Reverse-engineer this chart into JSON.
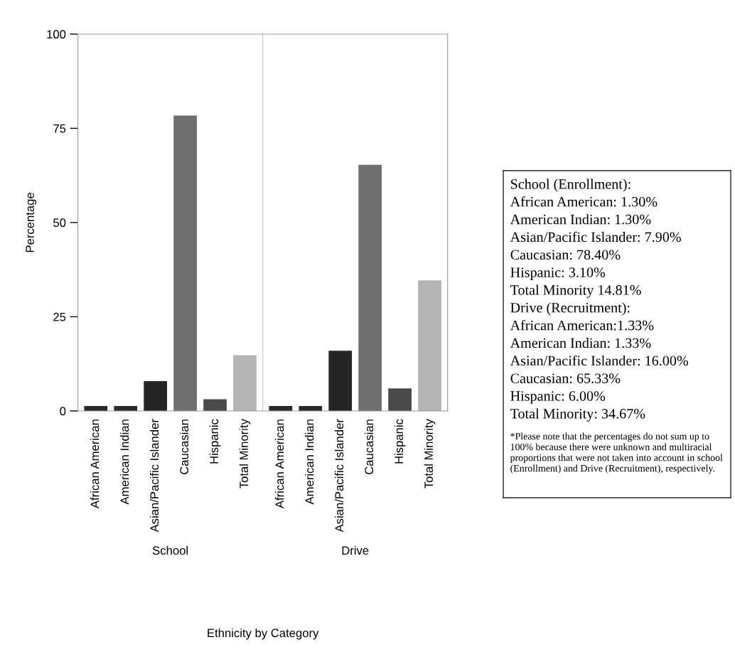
{
  "chart_data": [
    {
      "type": "bar",
      "categories": [
        "African American",
        "American Indian",
        "Asian/Pacific Islander",
        "Caucasian",
        "Hispanic",
        "Total Minority"
      ],
      "values": [
        1.3,
        1.3,
        7.9,
        78.4,
        3.1,
        14.81
      ],
      "colors": [
        "#2a2a2a",
        "#2a2a2a",
        "#262626",
        "#6e6e6e",
        "#4a4a4a",
        "#b4b4b4"
      ],
      "ylim": [
        0,
        100
      ],
      "yticks": [
        0,
        25,
        50,
        75,
        100
      ],
      "ylabel": "Percentage",
      "xlabel": "School",
      "annotations": [
        "Ethnicity by Category"
      ]
    },
    {
      "type": "bar",
      "categories": [
        "African American",
        "American Indian",
        "Asian/Pacific Islander",
        "Caucasian",
        "Hispanic",
        "Total Minority"
      ],
      "values": [
        1.33,
        1.33,
        16.0,
        65.33,
        6.0,
        34.67
      ],
      "colors": [
        "#2a2a2a",
        "#2a2a2a",
        "#262626",
        "#6e6e6e",
        "#4a4a4a",
        "#b4b4b4"
      ],
      "ylim": [
        0,
        100
      ],
      "tick_labels": "x",
      "xlabel": "Drive"
    },
    {
      "type": "other",
      "annotations": [
        "School (Enrollment):",
        "African American: 1.30%",
        "American Indian: 1.30%",
        "Asian/Pacific Islander: 7.90%",
        "Caucasian: 78.40%",
        "Hispanic: 3.10%",
        "Total Minority 14.81%",
        "Drive (Recruitment):",
        "African American:1.33%",
        "American Indian: 1.33%",
        "Asian/Pacific Islander: 16.00%",
        "Caucasian: 65.33%",
        "Hispanic: 6.00%",
        "Total Minority: 34.67%",
        "*Please note that the percentages do not sum up to 100% because there were unknown and multiracial proportions that were not taken into account in school (Enrollment) and Drive (Recruitment), respectively."
      ]
    }
  ]
}
